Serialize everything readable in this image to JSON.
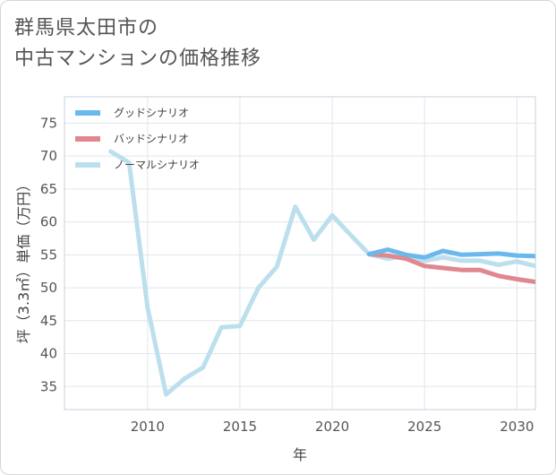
{
  "title_lines": [
    "群馬県太田市の",
    "中古マンションの価格推移"
  ],
  "chart_data": {
    "type": "line",
    "title": "群馬県太田市の中古マンションの価格推移",
    "xlabel": "年",
    "ylabel": "坪（3.3㎡）単価（万円）",
    "xlim": [
      2005.5,
      2031
    ],
    "ylim": [
      31.5,
      79
    ],
    "x_ticks": [
      2010,
      2015,
      2020,
      2025,
      2030
    ],
    "y_ticks": [
      35,
      40,
      45,
      50,
      55,
      60,
      65,
      70,
      75
    ],
    "grid": true,
    "legend_position": "top-left",
    "series": [
      {
        "name": "グッドシナリオ",
        "color": "#6bb9ec",
        "x": [
          2022,
          2023,
          2024,
          2025,
          2026,
          2027,
          2028,
          2029,
          2030,
          2031
        ],
        "y": [
          55.1,
          55.8,
          55.0,
          54.6,
          55.6,
          55.0,
          55.1,
          55.2,
          54.9,
          54.8
        ]
      },
      {
        "name": "バッドシナリオ",
        "color": "#e0878f",
        "x": [
          2022,
          2023,
          2024,
          2025,
          2026,
          2027,
          2028,
          2029,
          2030,
          2031
        ],
        "y": [
          55.1,
          54.9,
          54.4,
          53.3,
          53.0,
          52.7,
          52.7,
          51.8,
          51.3,
          50.9
        ]
      },
      {
        "name": "ノーマルシナリオ",
        "color": "#bcdfee",
        "x": [
          2008,
          2009,
          2010,
          2011,
          2012,
          2013,
          2014,
          2015,
          2016,
          2017,
          2018,
          2019,
          2020,
          2021,
          2022,
          2023,
          2024,
          2025,
          2026,
          2027,
          2028,
          2029,
          2030,
          2031
        ],
        "y": [
          70.7,
          69.0,
          47.0,
          33.8,
          36.2,
          37.9,
          44.0,
          44.2,
          50.0,
          53.2,
          62.3,
          57.3,
          61.0,
          58.0,
          55.1,
          54.4,
          54.9,
          54.1,
          54.6,
          54.1,
          54.1,
          53.5,
          54.0,
          53.3
        ]
      }
    ]
  }
}
